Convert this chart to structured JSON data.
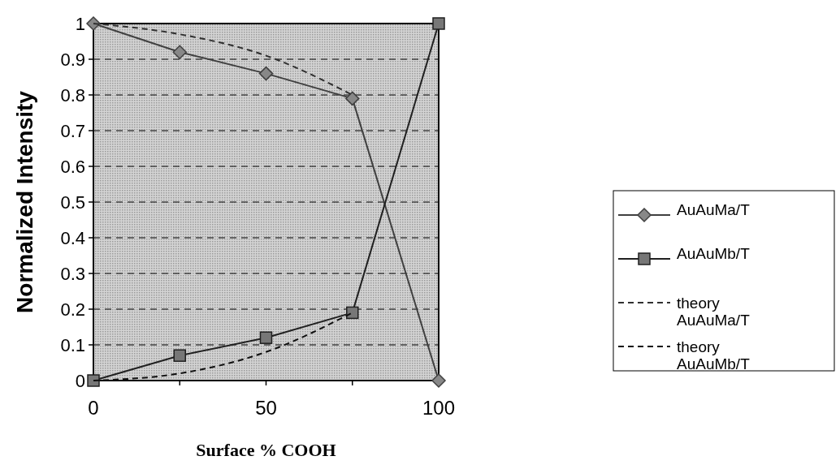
{
  "chart_data": {
    "type": "line",
    "xlabel": "Surface % COOH",
    "ylabel": "Normalized Intensity",
    "xlim": [
      0,
      100
    ],
    "xticks": [
      0,
      {
        "value": 25,
        "label": null
      },
      50,
      {
        "value": 75,
        "label": null
      },
      100
    ],
    "ylim": [
      0,
      1
    ],
    "yticks": [
      0,
      0.1,
      0.2,
      0.3,
      0.4,
      0.5,
      0.6,
      0.7,
      0.8,
      0.9,
      1
    ],
    "grid": "y",
    "legend": "right",
    "series": [
      {
        "name": "AuAuMa/T",
        "color": "#404040",
        "x": [
          0,
          25,
          50,
          75,
          100
        ],
        "values": [
          1,
          0.92,
          0.86,
          0.79,
          0
        ],
        "marker": "diamond",
        "line_style": "solid"
      },
      {
        "name": "AuAuMb/T",
        "color": "#202020",
        "x": [
          0,
          25,
          50,
          75,
          100
        ],
        "values": [
          0,
          0.07,
          0.12,
          0.19,
          1
        ],
        "marker": "square",
        "line_style": "solid"
      },
      {
        "name": "theory AuAuMa/T",
        "color": "#303030",
        "x": [
          0,
          25,
          50,
          75
        ],
        "values": [
          1,
          0.97,
          0.91,
          0.8
        ],
        "marker": "none",
        "line_style": "dashed"
      },
      {
        "name": "theory AuAuMb/T",
        "color": "#101010",
        "x": [
          0,
          25,
          50,
          75
        ],
        "values": [
          0,
          0.02,
          0.08,
          0.19
        ],
        "marker": "none",
        "line_style": "dashed"
      }
    ]
  }
}
